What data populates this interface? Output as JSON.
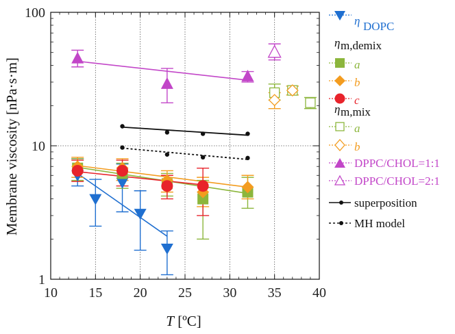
{
  "chart_data": {
    "type": "scatter",
    "xlabel_symbol": "T",
    "xlabel_unit": " [ºC]",
    "ylabel": "Membrane viscosity [nPa·s·m]",
    "xlim": [
      10,
      40
    ],
    "ylim": [
      1,
      100
    ],
    "yscale": "log",
    "x_ticks": [
      10,
      15,
      20,
      25,
      30,
      35,
      40
    ],
    "y_ticks": [
      1,
      10,
      100
    ],
    "grid": true,
    "legend_position": "right",
    "colors": {
      "dopc": "#1f6fd0",
      "a": "#8cb63c",
      "b": "#f39c1f",
      "c": "#e8232b",
      "chol": "#c246c8",
      "black": "#111111"
    },
    "series": [
      {
        "name": "η_DOPC",
        "color_key": "dopc",
        "marker": "triangle-down",
        "filled": true,
        "points": [
          [
            13,
            6.0,
            5.0,
            8.0
          ],
          [
            15,
            4.0,
            2.5,
            5.6
          ],
          [
            18,
            5.3,
            3.2,
            7.3
          ],
          [
            20,
            3.1,
            1.65,
            4.6
          ],
          [
            23,
            1.7,
            1.08,
            2.3
          ]
        ]
      },
      {
        "name": "η_m,demix a",
        "color_key": "a",
        "marker": "square",
        "filled": true,
        "points": [
          [
            13,
            6.8,
            5.5,
            8.0
          ],
          [
            18,
            6.2,
            4.8,
            7.4
          ],
          [
            23,
            5.2,
            4.2,
            6.2
          ],
          [
            27,
            4.0,
            2.0,
            5.5
          ],
          [
            32,
            4.5,
            3.4,
            5.8
          ]
        ]
      },
      {
        "name": "η_m,demix b",
        "color_key": "b",
        "marker": "diamond",
        "filled": true,
        "points": [
          [
            13,
            7.0,
            5.8,
            8.2
          ],
          [
            18,
            6.8,
            5.5,
            8.0
          ],
          [
            23,
            5.5,
            4.5,
            6.5
          ],
          [
            27,
            4.5,
            3.5,
            5.8
          ],
          [
            32,
            4.9,
            4.0,
            6.0
          ]
        ]
      },
      {
        "name": "η_m,demix c",
        "color_key": "c",
        "marker": "circle",
        "filled": true,
        "points": [
          [
            13,
            6.5,
            5.4,
            7.8
          ],
          [
            18,
            6.5,
            5.0,
            7.8
          ],
          [
            23,
            5.0,
            4.0,
            6.0
          ],
          [
            27,
            5.0,
            3.0,
            6.8
          ]
        ]
      },
      {
        "name": "η_m,mix a",
        "color_key": "a",
        "marker": "square",
        "filled": false,
        "points": [
          [
            35,
            25,
            22,
            29
          ],
          [
            37,
            26,
            24,
            28
          ],
          [
            39,
            21,
            19,
            23
          ]
        ]
      },
      {
        "name": "η_m,mix b",
        "color_key": "b",
        "marker": "diamond",
        "filled": false,
        "points": [
          [
            35,
            22,
            19,
            25
          ],
          [
            37,
            26,
            24,
            28
          ]
        ]
      },
      {
        "name": "DPPC/CHOL=1:1",
        "color_key": "chol",
        "marker": "triangle-up",
        "filled": true,
        "points": [
          [
            13,
            45,
            39,
            52
          ],
          [
            23,
            29,
            21,
            38
          ],
          [
            32,
            33,
            30,
            36
          ]
        ]
      },
      {
        "name": "DPPC/CHOL=2:1",
        "color_key": "chol",
        "marker": "triangle-up",
        "filled": false,
        "points": [
          [
            35,
            50,
            44,
            58
          ]
        ]
      }
    ],
    "fits": [
      {
        "color_key": "dopc",
        "x": [
          13,
          23
        ],
        "y": [
          6.2,
          2.1
        ]
      },
      {
        "color_key": "a",
        "x": [
          13,
          32
        ],
        "y": [
          6.9,
          4.4
        ]
      },
      {
        "color_key": "b",
        "x": [
          13,
          32
        ],
        "y": [
          7.1,
          4.9
        ]
      },
      {
        "color_key": "c",
        "x": [
          13,
          27
        ],
        "y": [
          6.4,
          5.1
        ]
      },
      {
        "color_key": "chol",
        "x": [
          13,
          32
        ],
        "y": [
          43,
          31
        ]
      }
    ],
    "superposition": {
      "points": [
        [
          18,
          14.0
        ],
        [
          23,
          12.6
        ],
        [
          27,
          12.3
        ],
        [
          32,
          12.3
        ]
      ],
      "fit": {
        "x": [
          18,
          32
        ],
        "y": [
          13.8,
          12.0
        ]
      }
    },
    "mh_model": {
      "points": [
        [
          18,
          9.7
        ],
        [
          23,
          8.6
        ],
        [
          27,
          8.2
        ],
        [
          32,
          8.1
        ]
      ],
      "fit": {
        "x": [
          18,
          32
        ],
        "y": [
          9.6,
          7.9
        ]
      }
    },
    "legend": {
      "dopc_symbol": "η",
      "dopc_sub": "DOPC",
      "demix_symbol": "η",
      "demix_sub": "m,demix",
      "mix_symbol": "η",
      "mix_sub": "m,mix",
      "label_a": "a",
      "label_b": "b",
      "label_c": "c",
      "chol11": "DPPC/CHOL=1:1",
      "chol21": "DPPC/CHOL=2:1",
      "superposition": "superposition",
      "mh": "MH model"
    }
  }
}
